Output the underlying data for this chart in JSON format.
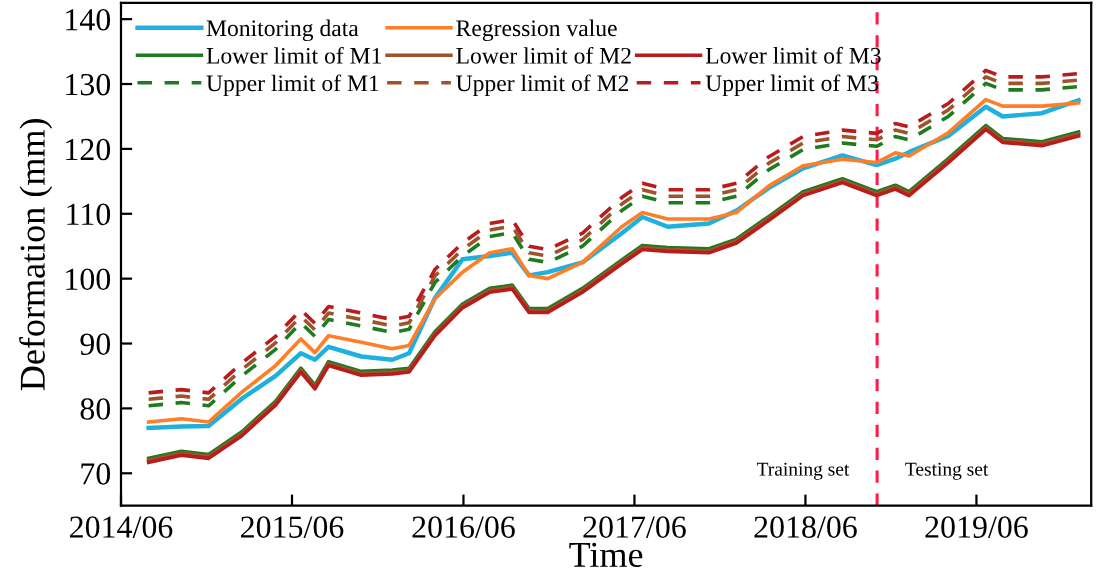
{
  "chart_data": {
    "type": "line",
    "xlabel": "Time",
    "ylabel": "Deformation (mm)",
    "x": [
      "2014-07-30",
      "2014-10-08",
      "2014-12-05",
      "2015-02-14",
      "2015-04-27",
      "2015-06-20",
      "2015-07-20",
      "2015-08-18",
      "2015-10-27",
      "2016-01-01",
      "2016-02-06",
      "2016-04-01",
      "2016-05-30",
      "2016-07-27",
      "2016-09-13",
      "2016-10-19",
      "2016-11-28",
      "2017-02-10",
      "2017-05-05",
      "2017-06-18",
      "2017-08-11",
      "2017-11-07",
      "2018-01-05",
      "2018-03-15",
      "2018-05-27",
      "2018-08-19",
      "2018-10-31",
      "2018-12-10",
      "2019-01-08",
      "2019-04-02",
      "2019-06-21",
      "2019-07-27",
      "2019-10-19",
      "2020-01-05"
    ],
    "xlim": [
      "2014-06-01",
      "2020-02-01"
    ],
    "xticks": [
      {
        "value": "2014-06-01",
        "label": "2014/06"
      },
      {
        "value": "2015-06-01",
        "label": "2015/06"
      },
      {
        "value": "2016-06-01",
        "label": "2016/06"
      },
      {
        "value": "2017-06-01",
        "label": "2017/06"
      },
      {
        "value": "2018-06-01",
        "label": "2018/06"
      },
      {
        "value": "2019-06-01",
        "label": "2019/06"
      }
    ],
    "ylim": [
      65,
      142.5
    ],
    "yticks": [
      70,
      80,
      90,
      100,
      110,
      120,
      130,
      140
    ],
    "grid": false,
    "legend": "top left",
    "series": [
      {
        "name": "Monitoring data",
        "color": "#1fb0e0",
        "line_style": "solid",
        "values": [
          77,
          77.2,
          77.3,
          81.5,
          85,
          88.5,
          87.5,
          89.5,
          88,
          87.5,
          88.5,
          97,
          103,
          103.5,
          104,
          100.5,
          101,
          102.5,
          107,
          109.5,
          108,
          108.5,
          110.5,
          114,
          117,
          119,
          117.5,
          118.5,
          119.5,
          122,
          126.5,
          125,
          125.5,
          127.5
        ]
      },
      {
        "name": "Regression value",
        "color": "#ff7f27",
        "line_style": "solid",
        "values": [
          77.9,
          78.4,
          77.9,
          82.5,
          86.6,
          90.7,
          88.6,
          91.2,
          90.2,
          89.2,
          89.7,
          96.9,
          101,
          104,
          104.6,
          100.5,
          100,
          102.5,
          108,
          110.2,
          109.2,
          109.2,
          110.2,
          114.3,
          117.4,
          118.4,
          117.9,
          119.4,
          118.9,
          122.5,
          127.6,
          126.6,
          126.6,
          127.1
        ]
      },
      {
        "name": "Lower limit of M1",
        "color": "#1e7b1e",
        "line_style": "solid",
        "values": [
          72.3,
          73.4,
          72.9,
          76.4,
          81.1,
          86.2,
          83.6,
          87.2,
          85.7,
          85.9,
          86.2,
          91.8,
          96.1,
          98.5,
          99,
          95.4,
          95.4,
          98.5,
          102.9,
          105.1,
          104.8,
          104.6,
          106.1,
          109.6,
          113.4,
          115.4,
          113.4,
          114.4,
          113.4,
          118.5,
          123.6,
          121.6,
          121.1,
          122.6
        ]
      },
      {
        "name": "Lower limit of M2",
        "color": "#a0522d",
        "line_style": "solid",
        "values": [
          72,
          73.1,
          72.6,
          76.1,
          80.8,
          85.9,
          83.3,
          86.9,
          85.4,
          85.6,
          85.9,
          91.5,
          95.8,
          98.2,
          98.7,
          95.1,
          95.1,
          98.2,
          102.6,
          104.8,
          104.5,
          104.3,
          105.8,
          109.3,
          113.1,
          115.1,
          113.1,
          114.1,
          113.1,
          118.2,
          123.3,
          121.3,
          120.8,
          122.3
        ]
      },
      {
        "name": "Lower limit of M3",
        "color": "#b81c1c",
        "line_style": "solid",
        "values": [
          71.7,
          72.8,
          72.3,
          75.8,
          80.5,
          85.6,
          83,
          86.6,
          85.1,
          85.3,
          85.6,
          91.2,
          95.5,
          97.9,
          98.4,
          94.8,
          94.8,
          97.9,
          102.3,
          104.5,
          104.2,
          104,
          105.5,
          109,
          112.8,
          114.8,
          112.8,
          113.8,
          112.8,
          117.9,
          123,
          121,
          120.5,
          122
        ]
      },
      {
        "name": "Upper limit of M1",
        "color": "#1e7b1e",
        "line_style": "dashed",
        "values": [
          80.4,
          80.9,
          80.4,
          85,
          89.1,
          93.2,
          91.1,
          93.7,
          92.7,
          91.7,
          92.2,
          99.4,
          103.5,
          106.5,
          107.1,
          103,
          102.5,
          105,
          110.5,
          112.7,
          111.7,
          111.7,
          112.7,
          116.8,
          119.9,
          120.9,
          120.4,
          121.9,
          121.4,
          125,
          130.1,
          129.1,
          129.1,
          129.6
        ]
      },
      {
        "name": "Upper limit of M2",
        "color": "#a0522d",
        "line_style": "dashed",
        "values": [
          81.4,
          81.9,
          81.4,
          86,
          90.1,
          94.2,
          92.1,
          94.7,
          93.7,
          92.7,
          93.2,
          100.4,
          104.5,
          107.5,
          108.1,
          104,
          103.5,
          106,
          111.5,
          113.7,
          112.7,
          112.7,
          113.7,
          117.8,
          120.9,
          121.9,
          121.4,
          122.9,
          122.4,
          126,
          131.1,
          130.1,
          130.1,
          130.6
        ]
      },
      {
        "name": "Upper limit of M3",
        "color": "#b81c1c",
        "line_style": "dashed",
        "values": [
          82.4,
          82.9,
          82.4,
          87,
          91.1,
          95.2,
          93.1,
          95.7,
          94.7,
          93.7,
          94.2,
          101.4,
          105.5,
          108.5,
          109.1,
          105,
          104.5,
          107,
          112.5,
          114.7,
          113.7,
          113.7,
          114.7,
          118.8,
          121.9,
          122.9,
          122.4,
          123.9,
          123.4,
          127,
          132.1,
          131.1,
          131.1,
          131.6
        ]
      }
    ],
    "ref_lines": [
      {
        "axis": "x",
        "value": "2018-11-01",
        "color": "#ff1a4a",
        "line_style": "dashed"
      }
    ],
    "annotations": [
      "Training set",
      "Testing set"
    ]
  }
}
